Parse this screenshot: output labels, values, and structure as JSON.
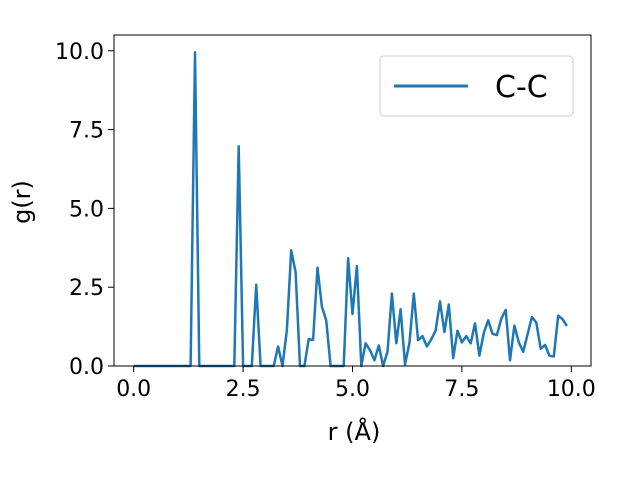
{
  "chart_data": {
    "type": "line",
    "xlabel": "r (Å)",
    "ylabel": "g(r)",
    "xlim": [
      -0.45,
      10.45
    ],
    "ylim": [
      0,
      10.5
    ],
    "xticks": [
      "0.0",
      "2.5",
      "5.0",
      "7.5",
      "10.0"
    ],
    "yticks": [
      "0.0",
      "2.5",
      "5.0",
      "7.5",
      "10.0"
    ],
    "grid": false,
    "legend_position": "top-right",
    "series": [
      {
        "name": "C-C",
        "color": "#1f77b4",
        "x": [
          0.0,
          0.1,
          0.2,
          0.3,
          0.4,
          0.5,
          0.6,
          0.7,
          0.8,
          0.9,
          1.0,
          1.1,
          1.2,
          1.3,
          1.4,
          1.5,
          1.6,
          1.7,
          1.8,
          1.9,
          2.0,
          2.1,
          2.2,
          2.3,
          2.4,
          2.5,
          2.6,
          2.7,
          2.8,
          2.9,
          3.0,
          3.1,
          3.2,
          3.3,
          3.4,
          3.5,
          3.6,
          3.7,
          3.8,
          3.9,
          4.0,
          4.1,
          4.2,
          4.3,
          4.4,
          4.5,
          4.6,
          4.7,
          4.8,
          4.9,
          5.0,
          5.1,
          5.2,
          5.3,
          5.4,
          5.5,
          5.6,
          5.7,
          5.8,
          5.9,
          6.0,
          6.1,
          6.2,
          6.3,
          6.4,
          6.5,
          6.6,
          6.7,
          6.8,
          6.9,
          7.0,
          7.1,
          7.2,
          7.3,
          7.4,
          7.5,
          7.6,
          7.7,
          7.8,
          7.9,
          8.0,
          8.1,
          8.2,
          8.3,
          8.4,
          8.5,
          8.6,
          8.7,
          8.8,
          8.9,
          9.0,
          9.1,
          9.2,
          9.3,
          9.4,
          9.5,
          9.6,
          9.7,
          9.8,
          9.9
        ],
        "y": [
          0,
          0,
          0,
          0,
          0,
          0,
          0,
          0,
          0,
          0,
          0,
          0,
          0,
          0,
          9.95,
          0,
          0,
          0,
          0,
          0,
          0,
          0,
          0,
          0,
          6.97,
          0,
          0,
          0,
          2.58,
          0,
          0,
          0,
          0,
          0.62,
          0,
          1.15,
          3.67,
          2.98,
          0,
          0,
          0.85,
          0.83,
          3.12,
          1.88,
          1.45,
          0,
          0,
          0,
          0,
          3.42,
          1.65,
          3.17,
          0,
          0.72,
          0.5,
          0.18,
          0.65,
          0,
          0.45,
          2.3,
          0.72,
          1.8,
          0.05,
          0.72,
          2.3,
          0.82,
          0.95,
          0.62,
          0.85,
          1.12,
          2.05,
          1.08,
          1.95,
          0.25,
          1.12,
          0.75,
          0.95,
          0.72,
          1.35,
          0.33,
          1.05,
          1.45,
          1.02,
          0.98,
          1.5,
          1.78,
          0.18,
          1.28,
          0.75,
          0.45,
          1.0,
          1.55,
          1.38,
          0.55,
          0.67,
          0.33,
          0.3,
          1.6,
          1.48,
          1.27
        ]
      }
    ]
  }
}
